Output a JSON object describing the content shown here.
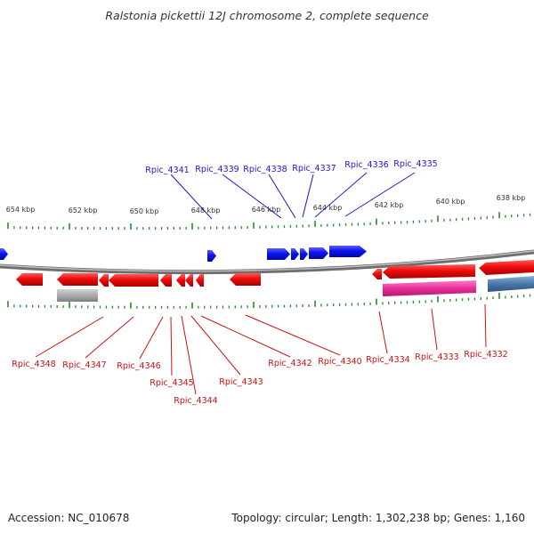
{
  "title": "Ralstonia pickettii 12J chromosome 2, complete sequence",
  "footer": {
    "accession": "Accession: NC_010678",
    "summary": "Topology: circular; Length: 1,302,238 bp; Genes: 1,160"
  },
  "scale_labels": [
    "654 kbp",
    "652 kbp",
    "650 kbp",
    "648 kbp",
    "646 kbp",
    "644 kbp",
    "642 kbp",
    "640 kbp",
    "638 kbp"
  ],
  "genes_top": [
    {
      "name": "Rpic_4341"
    },
    {
      "name": "Rpic_4339"
    },
    {
      "name": "Rpic_4338"
    },
    {
      "name": "Rpic_4337"
    },
    {
      "name": "Rpic_4336"
    },
    {
      "name": "Rpic_4335"
    }
  ],
  "genes_bottom": [
    {
      "name": "Rpic_4348"
    },
    {
      "name": "Rpic_4347"
    },
    {
      "name": "Rpic_4346"
    },
    {
      "name": "Rpic_4345"
    },
    {
      "name": "Rpic_4344"
    },
    {
      "name": "Rpic_4343"
    },
    {
      "name": "Rpic_4342"
    },
    {
      "name": "Rpic_4340"
    },
    {
      "name": "Rpic_4334"
    },
    {
      "name": "Rpic_4333"
    },
    {
      "name": "Rpic_4332"
    }
  ],
  "colors": {
    "forward_gene": "#0b14e8",
    "reverse_gene": "#e80b0b",
    "pseudo_gene": "#a8a8a8",
    "rna_feature": "#e0309a",
    "other_feature": "#4a78a8",
    "backbone": "#8a8a8a",
    "tick": "#2a8a2a",
    "label_top": "#1a1acc",
    "label_bottom": "#cc1111"
  }
}
